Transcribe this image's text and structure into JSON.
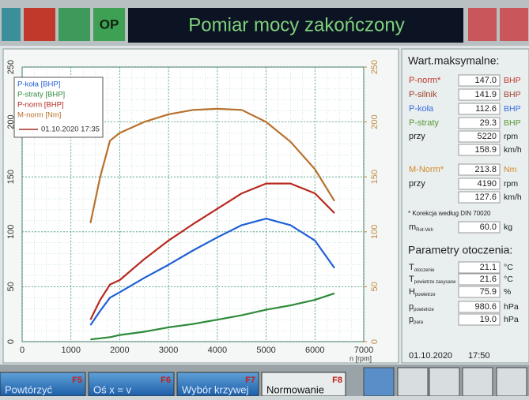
{
  "header": {
    "button": "OP",
    "title": "Pomiar mocy zakończony"
  },
  "chart_data": {
    "type": "line",
    "x_label": "n [rpm]",
    "x": [
      1400,
      1600,
      1800,
      2000,
      2500,
      3000,
      3500,
      4000,
      4500,
      5000,
      5500,
      6000,
      6400
    ],
    "series": [
      {
        "name": "P-koła [BHP]",
        "color": "#1f5fd6",
        "values": [
          15,
          28,
          40,
          45,
          58,
          70,
          83,
          95,
          106,
          112,
          106,
          92,
          67
        ]
      },
      {
        "name": "P-straty [BHP]",
        "color": "#2e8b3a",
        "values": [
          2,
          3,
          4,
          6,
          9,
          13,
          16,
          20,
          24,
          29,
          33,
          38,
          44
        ]
      },
      {
        "name": "P-norm [BHP]",
        "color": "#b8281f",
        "values": [
          20,
          38,
          52,
          56,
          75,
          92,
          107,
          121,
          135,
          144,
          144,
          135,
          117
        ]
      },
      {
        "name": "M-norm [Nm]",
        "color": "#b8702a",
        "axis": "y2",
        "values": [
          108,
          150,
          183,
          190,
          200,
          207,
          211,
          212,
          211,
          200,
          182,
          157,
          128
        ]
      }
    ],
    "legend_note": "01.10.2020 17:35",
    "xlim": [
      0,
      7000
    ],
    "xticks": [
      0,
      1000,
      2000,
      3000,
      4000,
      5000,
      6000,
      7000
    ],
    "ylim": [
      0,
      250
    ],
    "yticks": [
      0,
      50,
      100,
      150,
      200,
      250
    ],
    "y2lim": [
      0,
      250
    ],
    "y2ticks": [
      0,
      50,
      100,
      150,
      200,
      250
    ],
    "grid": true,
    "legend": "upper left"
  },
  "panel": {
    "title": "Wart.maksymalne:",
    "rows": [
      {
        "label": "P-norm*",
        "value": "147.0",
        "unit": "BHP",
        "color": "#c0392b"
      },
      {
        "label": "P-silnik",
        "value": "141.9",
        "unit": "BHP",
        "color": "#a0402a"
      },
      {
        "label": "P-koła",
        "value": "112.6",
        "unit": "BHP",
        "color": "#3a6fe0"
      },
      {
        "label": "P-straty",
        "value": "29.3",
        "unit": "BHP",
        "color": "#5a9a3a"
      },
      {
        "label": "przy",
        "value": "5220",
        "unit": "rpm",
        "color": "#222"
      },
      {
        "value": "158.9",
        "unit": "km/h",
        "color": "#222"
      },
      {
        "label": "M-Norm*",
        "value": "213.8",
        "unit": "Nm",
        "color": "#d08a2a"
      },
      {
        "label": "przy",
        "value": "4190",
        "unit": "rpm",
        "color": "#222"
      },
      {
        "value": "127.6",
        "unit": "km/h",
        "color": "#222"
      }
    ],
    "note": "* Korekcja według DIN 70020",
    "mass": {
      "label": "m",
      "sub": "Rot-Veh",
      "value": "60.0",
      "unit": "kg"
    },
    "env_title": "Parametry otoczenia:",
    "env_rows": [
      {
        "label": "T",
        "sub": "otoczenie",
        "value": "21.1",
        "unit": "°C"
      },
      {
        "label": "T",
        "sub": "powietrze zasysane",
        "value": "21.6",
        "unit": "°C"
      },
      {
        "label": "H",
        "sub": "powietrze",
        "value": "75.9",
        "unit": "%"
      },
      {
        "label": "p",
        "sub": "powietrze",
        "value": "980.6",
        "unit": "hPa"
      },
      {
        "label": "p",
        "sub": "para",
        "value": "19.0",
        "unit": "hPa"
      }
    ],
    "date": "01.10.2020",
    "time": "17:50"
  },
  "footer": {
    "buttons": [
      {
        "label": "Powtórzyć",
        "key": "F5"
      },
      {
        "label": "Oś x = v",
        "key": "F6"
      },
      {
        "label": "Wybór krzywej",
        "key": "F7"
      },
      {
        "label": "Normowanie",
        "key": "F8"
      }
    ]
  }
}
